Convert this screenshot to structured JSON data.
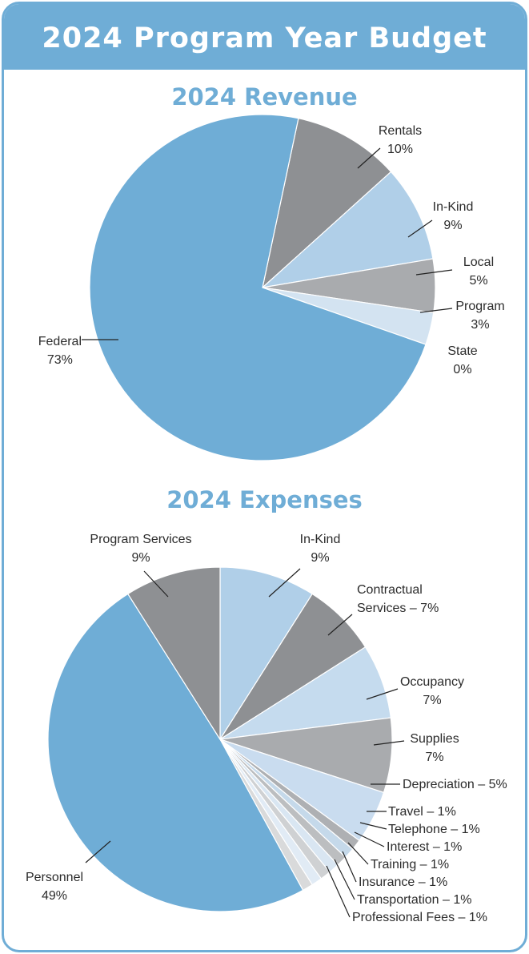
{
  "title": "2024 Program Year Budget",
  "chart_data": [
    {
      "type": "pie",
      "title": "2024 Revenue",
      "categories": [
        "Rentals",
        "In-Kind",
        "Local",
        "Program",
        "State",
        "Federal"
      ],
      "values": [
        10,
        9,
        5,
        3,
        0,
        73
      ],
      "value_labels": [
        "10%",
        "9%",
        "5%",
        "3%",
        "0%",
        "73%"
      ],
      "colors": [
        "#8e9093",
        "#b0cfe8",
        "#a9abae",
        "#d3e3f1",
        "#e6eef6",
        "#6fadd6"
      ]
    },
    {
      "type": "pie",
      "title": "2024 Expenses",
      "categories": [
        "In-Kind",
        "Contractual Services",
        "Occupancy",
        "Supplies",
        "Depreciation",
        "Travel",
        "Telephone",
        "Interest",
        "Training",
        "Insurance",
        "Transportation",
        "Professional Fees",
        "Personnel",
        "Program Services"
      ],
      "values": [
        9,
        7,
        7,
        7,
        5,
        1,
        1,
        1,
        1,
        1,
        1,
        1,
        49,
        9
      ],
      "value_labels": [
        "9%",
        "7%",
        "7%",
        "7%",
        "5%",
        "1%",
        "1%",
        "1%",
        "1%",
        "1%",
        "1%",
        "1%",
        "49%",
        "9%"
      ],
      "separator": "–",
      "colors": [
        "#b0cfe8",
        "#8e9093",
        "#c5dbee",
        "#a9abae",
        "#c9dcef",
        "#aeb0b3",
        "#c5d9ea",
        "#bcbec0",
        "#d9e6f2",
        "#cfd1d3",
        "#e1ebf5",
        "#d9dadb",
        "#6fadd6",
        "#8e9093"
      ]
    }
  ]
}
